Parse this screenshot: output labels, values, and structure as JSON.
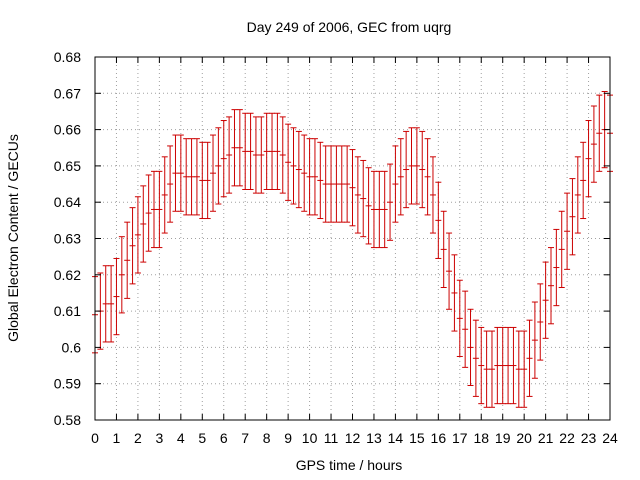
{
  "chart_data": {
    "type": "scatter",
    "title": "Day 249 of 2006, GEC from uqrg",
    "xlabel": "GPS time / hours",
    "ylabel": "Global Electron Content / GECUs",
    "xlim": [
      0,
      24
    ],
    "ylim": [
      0.58,
      0.68
    ],
    "xticks": [
      "0",
      "1",
      "2",
      "3",
      "4",
      "5",
      "6",
      "7",
      "8",
      "9",
      "10",
      "11",
      "12",
      "13",
      "14",
      "15",
      "16",
      "17",
      "18",
      "19",
      "20",
      "21",
      "22",
      "23",
      "24"
    ],
    "yticks": [
      "0.58",
      "0.59",
      "0.6",
      "0.61",
      "0.62",
      "0.63",
      "0.64",
      "0.65",
      "0.66",
      "0.67",
      "0.68"
    ],
    "grid": true,
    "legend": "none",
    "error_bar_color": "#cc0000",
    "series": [
      {
        "x": [
          0,
          0.25,
          0.5,
          0.75,
          1,
          1.25,
          1.5,
          1.75,
          2,
          2.25,
          2.5,
          2.75,
          3,
          3.25,
          3.5,
          3.75,
          4,
          4.25,
          4.5,
          4.75,
          5,
          5.25,
          5.5,
          5.75,
          6,
          6.25,
          6.5,
          6.75,
          7,
          7.25,
          7.5,
          7.75,
          8,
          8.25,
          8.5,
          8.75,
          9,
          9.25,
          9.5,
          9.75,
          10,
          10.25,
          10.5,
          10.75,
          11,
          11.25,
          11.5,
          11.75,
          12,
          12.25,
          12.5,
          12.75,
          13,
          13.25,
          13.5,
          13.75,
          14,
          14.25,
          14.5,
          14.75,
          15,
          15.25,
          15.5,
          15.75,
          16,
          16.25,
          16.5,
          16.75,
          17,
          17.25,
          17.5,
          17.75,
          18,
          18.25,
          18.5,
          18.75,
          19,
          19.25,
          19.5,
          19.75,
          20,
          20.25,
          20.5,
          20.75,
          21,
          21.25,
          21.5,
          21.75,
          22,
          22.25,
          22.5,
          22.75,
          23,
          23.25,
          23.5,
          23.75,
          24
        ],
        "y": [
          0.609,
          0.61,
          0.612,
          0.612,
          0.614,
          0.62,
          0.624,
          0.628,
          0.631,
          0.634,
          0.637,
          0.638,
          0.638,
          0.642,
          0.645,
          0.648,
          0.648,
          0.647,
          0.647,
          0.647,
          0.646,
          0.646,
          0.648,
          0.65,
          0.652,
          0.653,
          0.655,
          0.655,
          0.654,
          0.654,
          0.653,
          0.653,
          0.654,
          0.654,
          0.654,
          0.653,
          0.651,
          0.65,
          0.649,
          0.648,
          0.647,
          0.647,
          0.646,
          0.645,
          0.645,
          0.645,
          0.645,
          0.645,
          0.644,
          0.642,
          0.641,
          0.639,
          0.638,
          0.638,
          0.638,
          0.64,
          0.645,
          0.647,
          0.649,
          0.65,
          0.65,
          0.649,
          0.647,
          0.642,
          0.635,
          0.627,
          0.621,
          0.615,
          0.608,
          0.605,
          0.6,
          0.597,
          0.595,
          0.594,
          0.594,
          0.595,
          0.595,
          0.595,
          0.595,
          0.594,
          0.594,
          0.597,
          0.602,
          0.607,
          0.613,
          0.617,
          0.622,
          0.627,
          0.632,
          0.636,
          0.642,
          0.646,
          0.652,
          0.656,
          0.659,
          0.66,
          0.659
        ],
        "err": 0.0105
      }
    ]
  }
}
